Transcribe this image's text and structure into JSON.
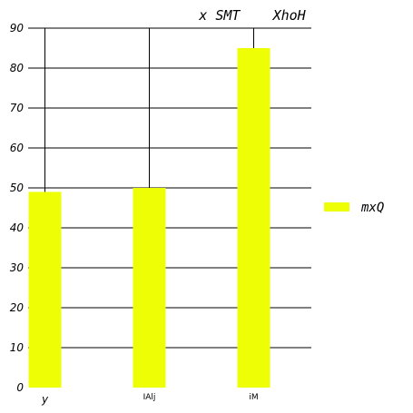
{
  "chart_data": {
    "type": "bar",
    "title": "x SMT    XhoH",
    "xlabel": "",
    "ylabel": "",
    "categories": [
      "y",
      "IAlj",
      "iM"
    ],
    "series": [
      {
        "name": "mxQ",
        "values": [
          49,
          50,
          85
        ],
        "color": "#eeff05"
      }
    ],
    "ylim": [
      0,
      90
    ],
    "yticks": [
      0,
      10,
      20,
      30,
      40,
      50,
      60,
      70,
      80,
      90
    ],
    "grid": true,
    "legend_position": "right"
  }
}
